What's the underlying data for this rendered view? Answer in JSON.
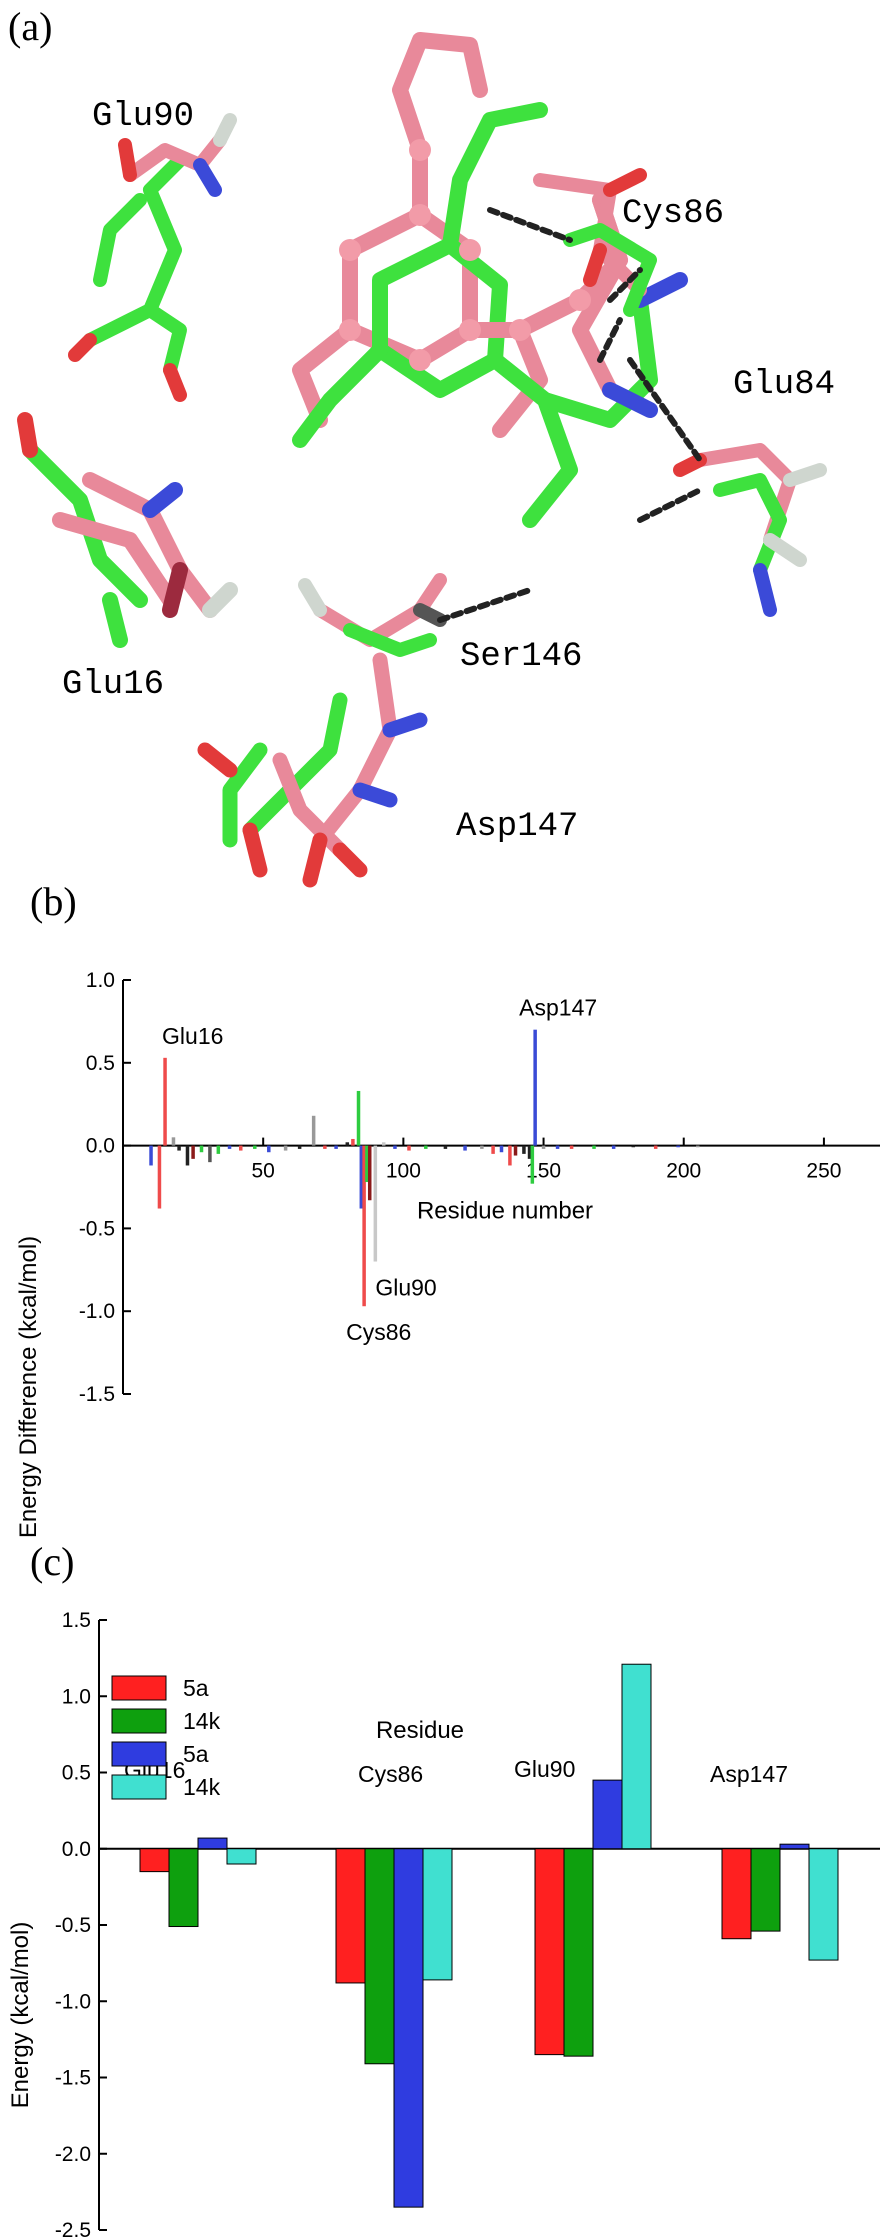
{
  "panel_a": {
    "label": "(a)",
    "residue_labels": [
      "Glu90",
      "Cys86",
      "Glu84",
      "Glu16",
      "Ser146",
      "Asp147"
    ]
  },
  "chart_data": [
    {
      "type": "bar",
      "panel_label": "(b)",
      "xlabel": "Residue number",
      "ylabel": "Energy Difference (kcal/mol)",
      "xlim": [
        0,
        270
      ],
      "ylim": [
        -1.5,
        1.0
      ],
      "xticks": [
        "50",
        "100",
        "150",
        "200",
        "250"
      ],
      "yticks": [
        "1.0",
        "0.5",
        "0.0",
        "-0.5",
        "-1.0",
        "-1.5"
      ],
      "annotations": [
        "Glu16",
        "Cys86",
        "Glu90",
        "Asp147"
      ],
      "bars": [
        {
          "x": 10,
          "y": -0.12,
          "color": "#3a4bd6"
        },
        {
          "x": 13,
          "y": -0.38,
          "color": "#ef4b4b"
        },
        {
          "x": 15,
          "y": 0.53,
          "color": "#ef4b4b"
        },
        {
          "x": 18,
          "y": 0.05,
          "color": "#999999"
        },
        {
          "x": 20,
          "y": -0.03,
          "color": "#222222"
        },
        {
          "x": 23,
          "y": -0.12,
          "color": "#222222"
        },
        {
          "x": 25,
          "y": -0.08,
          "color": "#8b1a1a"
        },
        {
          "x": 28,
          "y": -0.04,
          "color": "#2ecc40"
        },
        {
          "x": 31,
          "y": -0.1,
          "color": "#555555"
        },
        {
          "x": 34,
          "y": -0.05,
          "color": "#2ecc40"
        },
        {
          "x": 38,
          "y": -0.02,
          "color": "#3a4bd6"
        },
        {
          "x": 42,
          "y": -0.03,
          "color": "#ef4b4b"
        },
        {
          "x": 47,
          "y": -0.02,
          "color": "#2ecc40"
        },
        {
          "x": 52,
          "y": -0.04,
          "color": "#3a4bd6"
        },
        {
          "x": 58,
          "y": -0.03,
          "color": "#999999"
        },
        {
          "x": 63,
          "y": -0.02,
          "color": "#222222"
        },
        {
          "x": 68,
          "y": 0.18,
          "color": "#999999"
        },
        {
          "x": 72,
          "y": -0.02,
          "color": "#ef4b4b"
        },
        {
          "x": 76,
          "y": -0.02,
          "color": "#3a4bd6"
        },
        {
          "x": 80,
          "y": 0.02,
          "color": "#222222"
        },
        {
          "x": 82,
          "y": 0.04,
          "color": "#ef4b4b"
        },
        {
          "x": 84,
          "y": 0.33,
          "color": "#2ecc40"
        },
        {
          "x": 85,
          "y": -0.38,
          "color": "#3a4bd6"
        },
        {
          "x": 86,
          "y": -0.97,
          "color": "#ef4b4b"
        },
        {
          "x": 87,
          "y": -0.22,
          "color": "#2ecc40"
        },
        {
          "x": 88,
          "y": -0.33,
          "color": "#8b1a1a"
        },
        {
          "x": 90,
          "y": -0.7,
          "color": "#c8c8c8"
        },
        {
          "x": 93,
          "y": 0.02,
          "color": "#c8c8c8"
        },
        {
          "x": 97,
          "y": -0.02,
          "color": "#3a4bd6"
        },
        {
          "x": 102,
          "y": -0.03,
          "color": "#ef4b4b"
        },
        {
          "x": 108,
          "y": -0.02,
          "color": "#2ecc40"
        },
        {
          "x": 115,
          "y": -0.02,
          "color": "#222222"
        },
        {
          "x": 122,
          "y": -0.03,
          "color": "#3a4bd6"
        },
        {
          "x": 128,
          "y": -0.02,
          "color": "#999999"
        },
        {
          "x": 132,
          "y": -0.05,
          "color": "#ef4b4b"
        },
        {
          "x": 135,
          "y": -0.04,
          "color": "#3a4bd6"
        },
        {
          "x": 138,
          "y": -0.12,
          "color": "#ef4b4b"
        },
        {
          "x": 140,
          "y": -0.06,
          "color": "#8b1a1a"
        },
        {
          "x": 143,
          "y": -0.05,
          "color": "#222222"
        },
        {
          "x": 145,
          "y": -0.08,
          "color": "#222222"
        },
        {
          "x": 146,
          "y": -0.23,
          "color": "#2ecc40"
        },
        {
          "x": 147,
          "y": 0.7,
          "color": "#3a4bd6"
        },
        {
          "x": 150,
          "y": -0.02,
          "color": "#999999"
        },
        {
          "x": 155,
          "y": -0.02,
          "color": "#3a4bd6"
        },
        {
          "x": 160,
          "y": -0.02,
          "color": "#ef4b4b"
        },
        {
          "x": 168,
          "y": -0.02,
          "color": "#2ecc40"
        },
        {
          "x": 175,
          "y": -0.02,
          "color": "#3a4bd6"
        },
        {
          "x": 182,
          "y": -0.01,
          "color": "#222222"
        },
        {
          "x": 190,
          "y": -0.02,
          "color": "#ef4b4b"
        },
        {
          "x": 198,
          "y": -0.01,
          "color": "#3a4bd6"
        },
        {
          "x": 205,
          "y": -0.01,
          "color": "#999999"
        }
      ]
    },
    {
      "type": "bar",
      "panel_label": "(c)",
      "xlabel": "Residue",
      "ylabel": "Energy (kcal/mol)",
      "ylim": [
        -2.5,
        1.5
      ],
      "yticks": [
        "1.5",
        "1.0",
        "0.5",
        "0.0",
        "-0.5",
        "-1.0",
        "-1.5",
        "-2.0",
        "-2.5"
      ],
      "categories": [
        "Glu16",
        "Cys86",
        "Glu90",
        "Asp147"
      ],
      "legend_position": "top-left",
      "series": [
        {
          "name": "5a",
          "color": "#ff2020",
          "values": [
            -0.15,
            -0.88,
            -1.35,
            -0.59
          ]
        },
        {
          "name": "14k",
          "color": "#0ea00e",
          "values": [
            -0.51,
            -1.41,
            -1.36,
            -0.54
          ]
        },
        {
          "name": "5a",
          "color": "#2f3ce0",
          "values": [
            0.07,
            -2.35,
            0.45,
            0.03
          ]
        },
        {
          "name": "14k",
          "color": "#40e0d0",
          "values": [
            -0.1,
            -0.86,
            1.21,
            -0.73
          ]
        }
      ]
    }
  ]
}
